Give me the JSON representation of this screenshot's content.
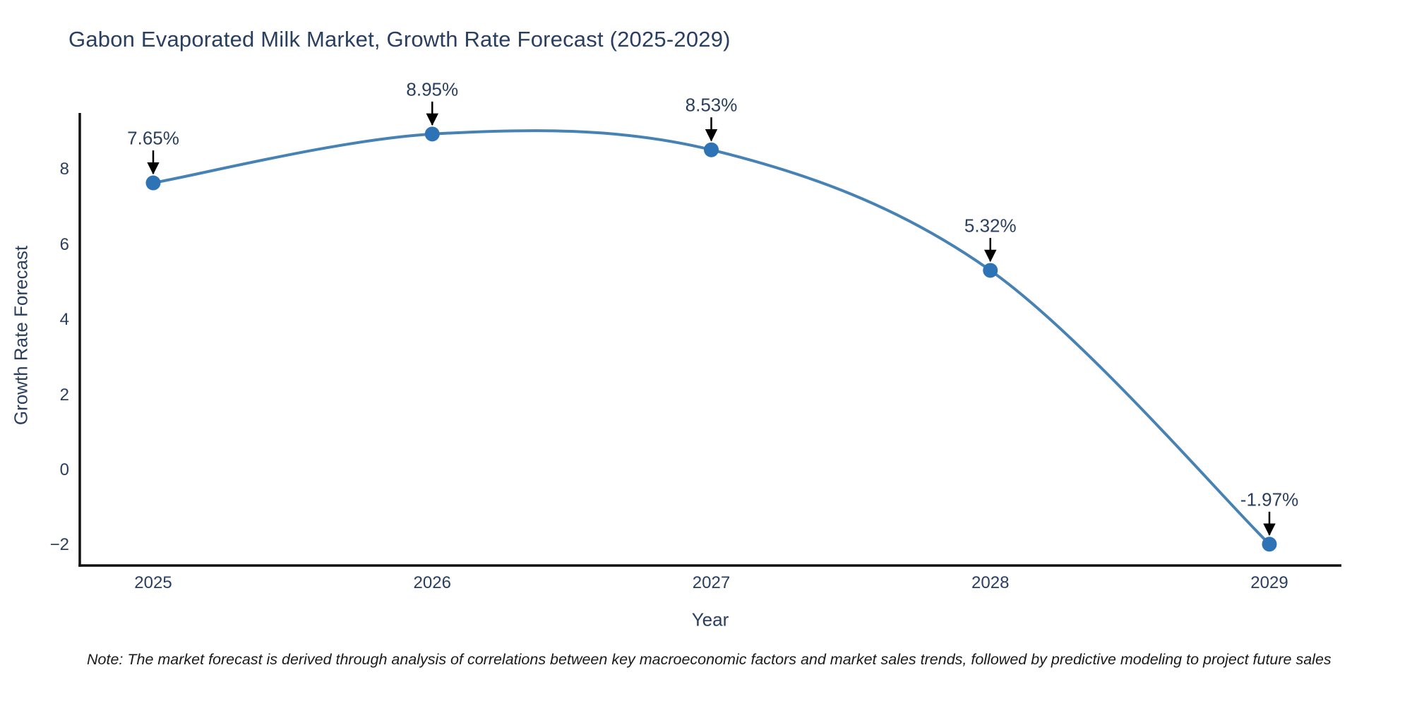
{
  "chart_data": {
    "type": "line",
    "line_shape": "spline",
    "title": "Gabon Evaporated Milk Market, Growth Rate Forecast (2025-2029)",
    "xlabel": "Year",
    "ylabel": "Growth Rate Forecast",
    "x": [
      2025,
      2026,
      2027,
      2028,
      2029
    ],
    "values": [
      7.65,
      8.95,
      8.53,
      5.32,
      -1.97
    ],
    "point_labels": [
      "7.65%",
      "8.95%",
      "8.53%",
      "5.32%",
      "-1.97%"
    ],
    "xtick_labels": [
      "2025",
      "2026",
      "2027",
      "2028",
      "2029"
    ],
    "ytick_values": [
      8,
      6,
      4,
      2,
      0,
      -2
    ],
    "ytick_labels": [
      "8",
      "6",
      "4",
      "2",
      "0",
      "−2"
    ],
    "ylim": [
      -2.55,
      9.6
    ],
    "grid": false,
    "legend": false,
    "annotation_arrows": true,
    "note": "Note: The market forecast is derived through analysis of correlations between key macroeconomic factors and market sales trends, followed by predictive modeling to project future sales",
    "colors": {
      "line": "#4682b4",
      "marker": "#2e73b6",
      "axis": "#111111",
      "text": "#2a3f5f",
      "arrow": "#000000",
      "note": "#1a1a1a",
      "background": "#ffffff"
    }
  }
}
